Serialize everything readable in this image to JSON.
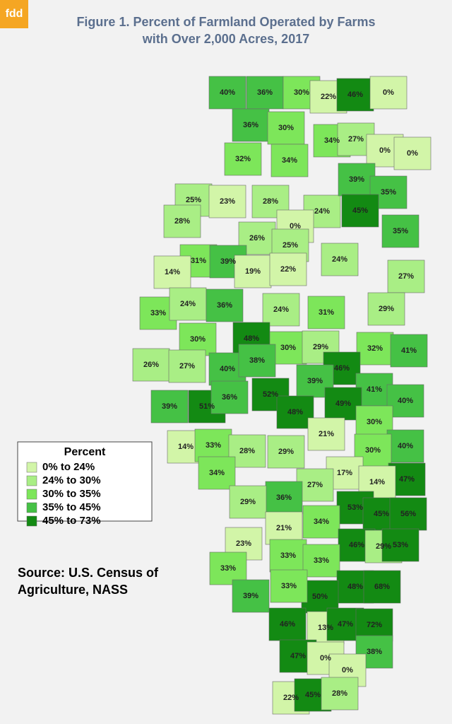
{
  "logo": "fdd",
  "title": [
    "Figure 1. Percent of Farmland Operated by Farms",
    "with Over 2,000 Acres, 2017"
  ],
  "legend": {
    "title": "Percent",
    "breaks": [
      0,
      24,
      30,
      35,
      45,
      73
    ],
    "items": [
      {
        "label": "0% to 24%",
        "color": "#d2f5a8"
      },
      {
        "label": "24% to 30%",
        "color": "#a9ee85"
      },
      {
        "label": "30% to 35%",
        "color": "#7de65a"
      },
      {
        "label": "35% to 45%",
        "color": "#45c145"
      },
      {
        "label": "45% to 73%",
        "color": "#138a13"
      }
    ]
  },
  "source": [
    "Source: U.S. Census of",
    "Agriculture, NASS"
  ],
  "regions": [
    {
      "value": 40,
      "label": "40%"
    },
    {
      "value": 36,
      "label": "36%"
    },
    {
      "value": 30,
      "label": "30%"
    },
    {
      "value": 22,
      "label": "22%"
    },
    {
      "value": 46,
      "label": "46%"
    },
    {
      "value": 0,
      "label": "0%"
    },
    {
      "value": 36,
      "label": "36%"
    },
    {
      "value": 30,
      "label": "30%"
    },
    {
      "value": 34,
      "label": "34%"
    },
    {
      "value": 27,
      "label": "27%"
    },
    {
      "value": 0,
      "label": "0%"
    },
    {
      "value": 0,
      "label": "0%"
    },
    {
      "value": 32,
      "label": "32%"
    },
    {
      "value": 34,
      "label": "34%"
    },
    {
      "value": 25,
      "label": "25%"
    },
    {
      "value": 23,
      "label": "23%"
    },
    {
      "value": 28,
      "label": "28%"
    },
    {
      "value": 24,
      "label": "24%"
    },
    {
      "value": 39,
      "label": "39%"
    },
    {
      "value": 35,
      "label": "35%"
    },
    {
      "value": 45,
      "label": "45%"
    },
    {
      "value": 28,
      "label": "28%"
    },
    {
      "value": 0,
      "label": "0%"
    },
    {
      "value": 35,
      "label": "35%"
    },
    {
      "value": 26,
      "label": "26%"
    },
    {
      "value": 25,
      "label": "25%"
    },
    {
      "value": 31,
      "label": "31%"
    },
    {
      "value": 39,
      "label": "39%"
    },
    {
      "value": 14,
      "label": "14%"
    },
    {
      "value": 19,
      "label": "19%"
    },
    {
      "value": 22,
      "label": "22%"
    },
    {
      "value": 24,
      "label": "24%"
    },
    {
      "value": 27,
      "label": "27%"
    },
    {
      "value": 33,
      "label": "33%"
    },
    {
      "value": 24,
      "label": "24%"
    },
    {
      "value": 36,
      "label": "36%"
    },
    {
      "value": 24,
      "label": "24%"
    },
    {
      "value": 31,
      "label": "31%"
    },
    {
      "value": 29,
      "label": "29%"
    },
    {
      "value": 30,
      "label": "30%"
    },
    {
      "value": 48,
      "label": "48%"
    },
    {
      "value": 30,
      "label": "30%"
    },
    {
      "value": 29,
      "label": "29%"
    },
    {
      "value": 32,
      "label": "32%"
    },
    {
      "value": 41,
      "label": "41%"
    },
    {
      "value": 26,
      "label": "26%"
    },
    {
      "value": 27,
      "label": "27%"
    },
    {
      "value": 40,
      "label": "40%"
    },
    {
      "value": 38,
      "label": "38%"
    },
    {
      "value": 46,
      "label": "46%"
    },
    {
      "value": 39,
      "label": "39%"
    },
    {
      "value": 41,
      "label": "41%"
    },
    {
      "value": 52,
      "label": "52%"
    },
    {
      "value": 40,
      "label": "40%"
    },
    {
      "value": 39,
      "label": "39%"
    },
    {
      "value": 51,
      "label": "51%"
    },
    {
      "value": 36,
      "label": "36%"
    },
    {
      "value": 49,
      "label": "49%"
    },
    {
      "value": 48,
      "label": "48%"
    },
    {
      "value": 30,
      "label": "30%"
    },
    {
      "value": 21,
      "label": "21%"
    },
    {
      "value": 40,
      "label": "40%"
    },
    {
      "value": 14,
      "label": "14%"
    },
    {
      "value": 33,
      "label": "33%"
    },
    {
      "value": 28,
      "label": "28%"
    },
    {
      "value": 29,
      "label": "29%"
    },
    {
      "value": 30,
      "label": "30%"
    },
    {
      "value": 17,
      "label": "17%"
    },
    {
      "value": 47,
      "label": "47%"
    },
    {
      "value": 34,
      "label": "34%"
    },
    {
      "value": 27,
      "label": "27%"
    },
    {
      "value": 14,
      "label": "14%"
    },
    {
      "value": 36,
      "label": "36%"
    },
    {
      "value": 29,
      "label": "29%"
    },
    {
      "value": 53,
      "label": "53%"
    },
    {
      "value": 45,
      "label": "45%"
    },
    {
      "value": 56,
      "label": "56%"
    },
    {
      "value": 34,
      "label": "34%"
    },
    {
      "value": 21,
      "label": "21%"
    },
    {
      "value": 46,
      "label": "46%"
    },
    {
      "value": 29,
      "label": "29%"
    },
    {
      "value": 53,
      "label": "53%"
    },
    {
      "value": 23,
      "label": "23%"
    },
    {
      "value": 33,
      "label": "33%"
    },
    {
      "value": 33,
      "label": "33%"
    },
    {
      "value": 33,
      "label": "33%"
    },
    {
      "value": 48,
      "label": "48%"
    },
    {
      "value": 68,
      "label": "68%"
    },
    {
      "value": 50,
      "label": "50%"
    },
    {
      "value": 39,
      "label": "39%"
    },
    {
      "value": 33,
      "label": "33%"
    },
    {
      "value": 46,
      "label": "46%"
    },
    {
      "value": 13,
      "label": "13%"
    },
    {
      "value": 47,
      "label": "47%"
    },
    {
      "value": 72,
      "label": "72%"
    },
    {
      "value": 47,
      "label": "47%"
    },
    {
      "value": 0,
      "label": "0%"
    },
    {
      "value": 38,
      "label": "38%"
    },
    {
      "value": 0,
      "label": "0%"
    },
    {
      "value": 22,
      "label": "22%"
    },
    {
      "value": 45,
      "label": "45%"
    },
    {
      "value": 28,
      "label": "28%"
    }
  ]
}
